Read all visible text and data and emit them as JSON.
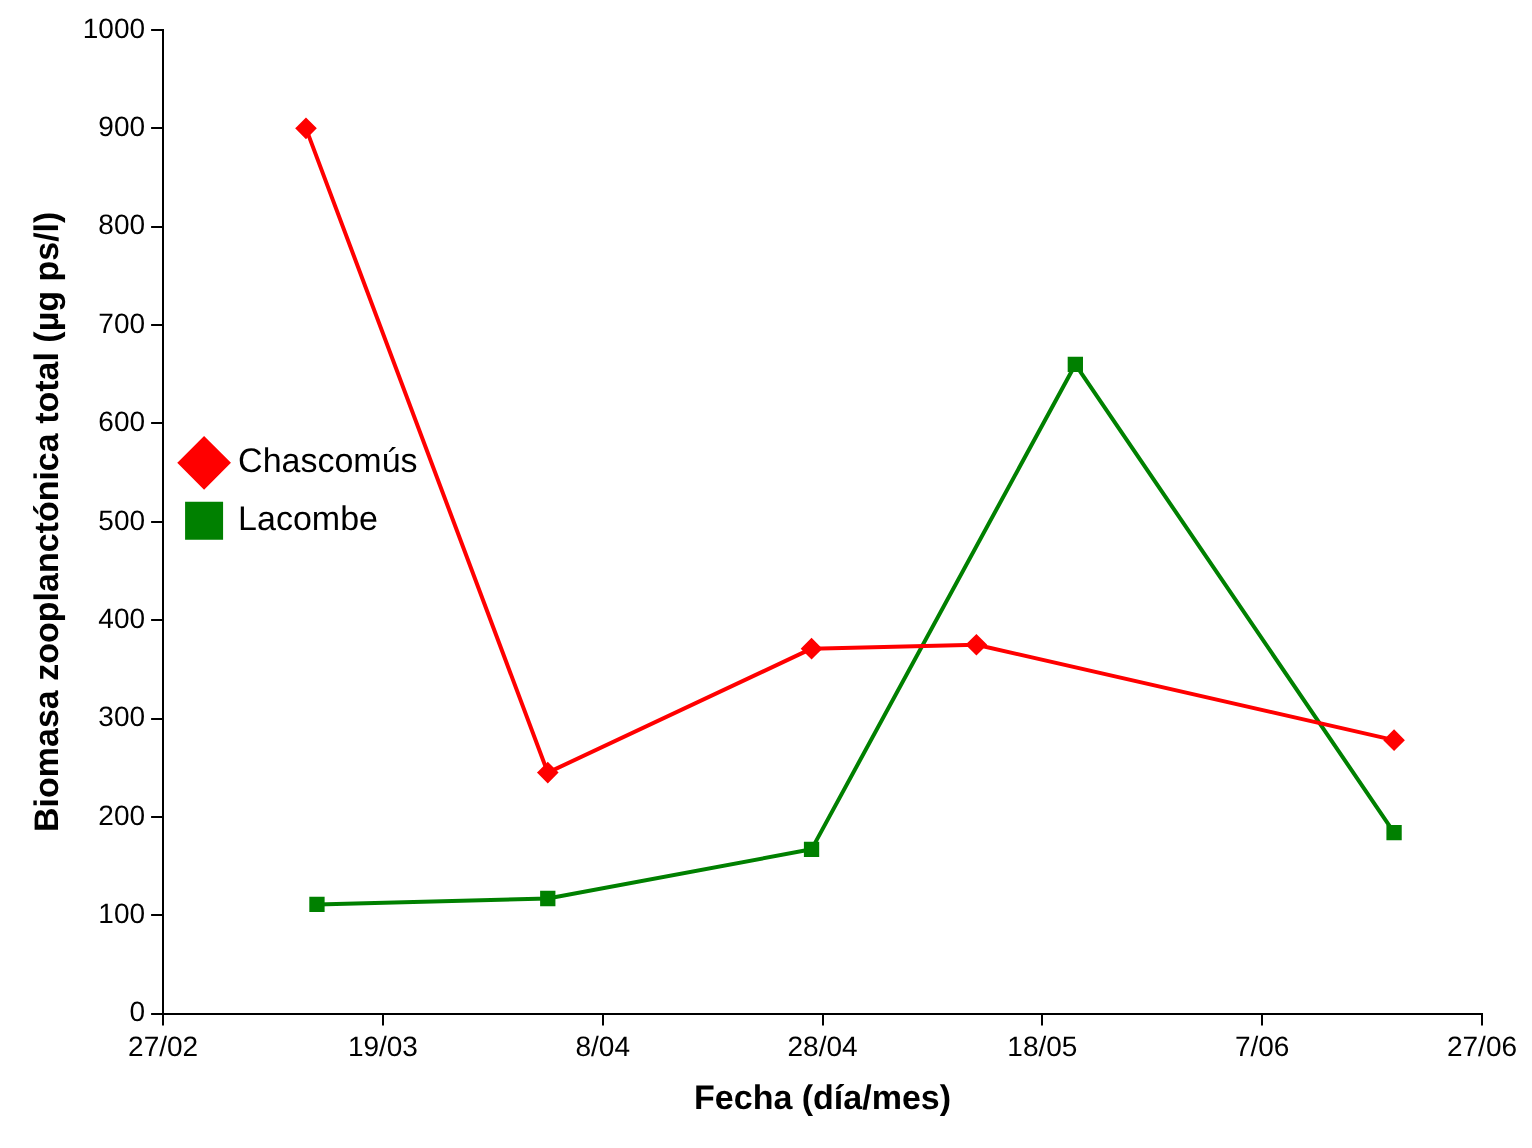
{
  "chart_data": {
    "type": "line",
    "xlabel": "Fecha (día/mes)",
    "ylabel": "Biomasa zooplanctónica total (µg ps/l)",
    "xlim": [
      "--02-27",
      "--06-27"
    ],
    "xticks": [
      {
        "value": "--02-27",
        "label": "27/02"
      },
      {
        "value": "--03-19",
        "label": "19/03"
      },
      {
        "value": "--04-08",
        "label": "8/04"
      },
      {
        "value": "--04-28",
        "label": "28/04"
      },
      {
        "value": "--05-18",
        "label": "18/05"
      },
      {
        "value": "--06-07",
        "label": "7/06"
      },
      {
        "value": "--06-27",
        "label": "27/06"
      }
    ],
    "ylim": [
      0,
      1000
    ],
    "yticks": [
      0,
      100,
      200,
      300,
      400,
      500,
      600,
      700,
      800,
      900,
      1000
    ],
    "grid": false,
    "legend": "top",
    "line_style": "solid",
    "series": [
      {
        "name": "Chascomús",
        "color": "#ff0000",
        "marker": "diamond",
        "x": [
          "--03-12",
          "--04-03",
          "--04-27",
          "--05-12",
          "--06-19"
        ],
        "values": [
          900,
          245,
          371,
          375,
          278
        ]
      },
      {
        "name": "Lacombe",
        "color": "#008000",
        "marker": "square",
        "x": [
          "--03-13",
          "--04-03",
          "--04-27",
          "--05-21",
          "--06-19"
        ],
        "values": [
          111,
          117,
          167,
          660,
          184
        ]
      }
    ]
  }
}
